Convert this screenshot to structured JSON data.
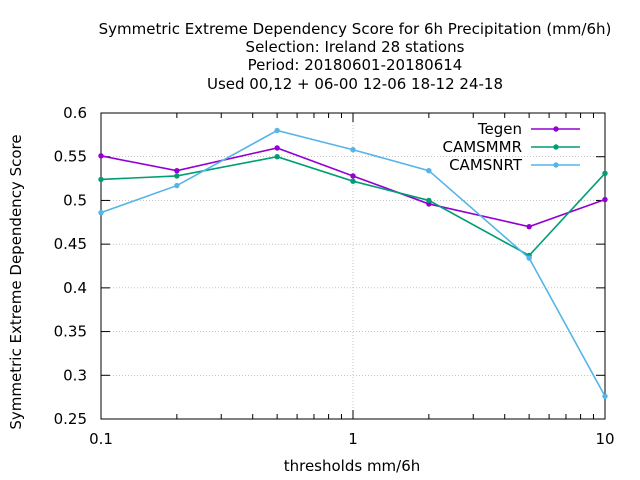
{
  "chart_data": {
    "type": "line",
    "title_lines": [
      "Symmetric Extreme Dependency Score  for 6h Precipitation (mm/6h)",
      "Selection: Ireland     28 stations",
      "Period: 20180601-20180614",
      "Used  00,12  + 06-00 12-06 18-12 24-18"
    ],
    "xlabel": "thresholds mm/6h",
    "ylabel": "Symmetric Extreme Dependency Score",
    "x_scale": "log",
    "xlim": [
      0.1,
      10
    ],
    "ylim": [
      0.25,
      0.6
    ],
    "x_ticks": [
      {
        "value": 0.1,
        "label": "0.1"
      },
      {
        "value": 1,
        "label": "1"
      },
      {
        "value": 10,
        "label": "10"
      }
    ],
    "y_ticks": [
      {
        "value": 0.25,
        "label": "0.25"
      },
      {
        "value": 0.3,
        "label": "0.3"
      },
      {
        "value": 0.35,
        "label": "0.35"
      },
      {
        "value": 0.4,
        "label": "0.4"
      },
      {
        "value": 0.45,
        "label": "0.45"
      },
      {
        "value": 0.5,
        "label": "0.5"
      },
      {
        "value": 0.55,
        "label": "0.55"
      },
      {
        "value": 0.6,
        "label": "0.6"
      }
    ],
    "grid": true,
    "legend_position": "top-right",
    "x": [
      0.1,
      0.2,
      0.5,
      1,
      2,
      5,
      10
    ],
    "series": [
      {
        "name": "Tegen",
        "color": "#9400d3",
        "values": [
          0.551,
          0.534,
          0.56,
          0.528,
          0.496,
          0.47,
          0.501
        ]
      },
      {
        "name": "CAMSMMR",
        "color": "#009e73",
        "values": [
          0.524,
          0.528,
          0.55,
          0.522,
          0.5,
          0.437,
          0.531
        ]
      },
      {
        "name": "CAMSNRT",
        "color": "#56b4e9",
        "values": [
          0.486,
          0.517,
          0.58,
          0.558,
          0.534,
          0.434,
          0.276
        ]
      }
    ]
  }
}
